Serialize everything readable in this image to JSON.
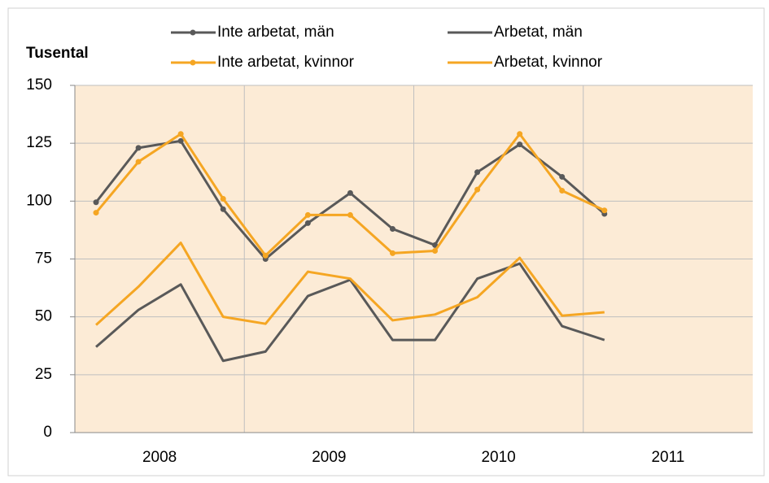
{
  "chart_data": {
    "type": "line",
    "y_label": "Tusental",
    "categories": [
      null,
      "2008",
      null,
      null,
      null,
      "2009",
      null,
      null,
      null,
      "2010",
      null,
      null,
      null,
      "2011",
      null,
      null
    ],
    "series": [
      {
        "name": "Inte arbetat, män",
        "color": "#595959",
        "marker": true,
        "values": [
          99.5,
          123,
          126,
          96.5,
          75,
          90.5,
          103.5,
          88,
          81,
          112.5,
          124.5,
          110.5,
          94.5,
          null,
          null,
          null
        ]
      },
      {
        "name": "Arbetat, män",
        "color": "#595959",
        "marker": false,
        "values": [
          37,
          53,
          64,
          31,
          35,
          59,
          66,
          40,
          40,
          66.5,
          73,
          46,
          40,
          null,
          null,
          null
        ]
      },
      {
        "name": "Inte arbetat, kvinnor",
        "color": "#f5a623",
        "marker": true,
        "values": [
          95,
          117,
          129,
          101,
          76.5,
          94,
          94,
          77.5,
          78.5,
          105,
          129,
          104.5,
          96,
          null,
          null,
          null
        ]
      },
      {
        "name": "Arbetat, kvinnor",
        "color": "#f5a623",
        "marker": false,
        "values": [
          46.5,
          63,
          82,
          50,
          47,
          69.5,
          66.5,
          48.5,
          51,
          58.5,
          75.5,
          50.5,
          52,
          null,
          null,
          null
        ]
      }
    ],
    "ylim": [
      0,
      150
    ],
    "yticks": [
      0,
      25,
      50,
      75,
      100,
      125,
      150
    ],
    "grid": true,
    "plot_background": "#fcebd6"
  }
}
